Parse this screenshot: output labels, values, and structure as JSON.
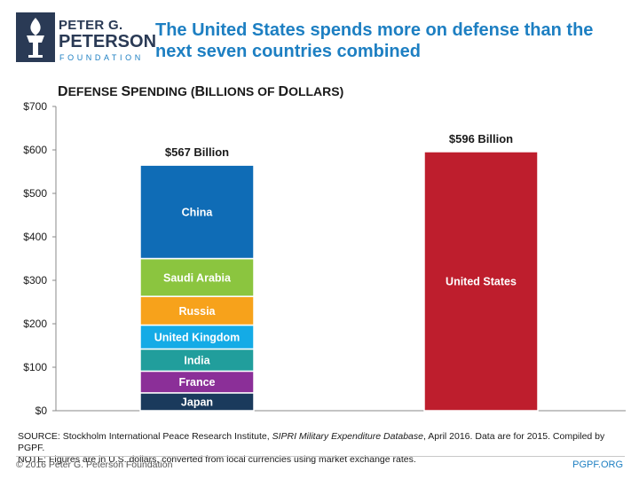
{
  "logo": {
    "line1": "PETER G.",
    "line2": "PETERSON",
    "line3": "FOUNDATION"
  },
  "headline": "The United States spends more on defense than the next seven countries combined",
  "chart_data": {
    "type": "bar",
    "stacked": true,
    "title_parts": [
      "D",
      "EFENSE ",
      "S",
      "PENDING (",
      "B",
      "ILLIONS OF ",
      "D",
      "OLLARS)"
    ],
    "title": "Defense Spending (Billions of Dollars)",
    "ylim": [
      0,
      700
    ],
    "yticks": [
      0,
      100,
      200,
      300,
      400,
      500,
      600,
      700
    ],
    "ytick_labels": [
      "$0",
      "$100",
      "$200",
      "$300",
      "$400",
      "$500",
      "$600",
      "$700"
    ],
    "bars": [
      {
        "name": "next-seven",
        "total_label": "$567 Billion",
        "segments": [
          {
            "label": "Japan",
            "value": 41,
            "color": "#1a3a5c"
          },
          {
            "label": "France",
            "value": 50,
            "color": "#8b2f98"
          },
          {
            "label": "India",
            "value": 51,
            "color": "#219e9c"
          },
          {
            "label": "United Kingdom",
            "value": 55,
            "color": "#14abe6"
          },
          {
            "label": "Russia",
            "value": 66,
            "color": "#f7a21b"
          },
          {
            "label": "Saudi Arabia",
            "value": 87,
            "color": "#8bc53f"
          },
          {
            "label": "China",
            "value": 215,
            "color": "#0f6cb6"
          }
        ]
      },
      {
        "name": "united-states",
        "total_label": "$596 Billion",
        "segments": [
          {
            "label": "United States",
            "value": 596,
            "color": "#be1e2d"
          }
        ]
      }
    ]
  },
  "source_lines": {
    "source_prefix": "SOURCE: Stockholm International Peace Research Institute, ",
    "source_italic": "SIPRI Military Expenditure Database",
    "source_suffix": ", April 2016. Data are for 2015. Compiled by PGPF.",
    "note": "NOTE: Figures are in U.S. dollars, converted from local currencies using market exchange rates."
  },
  "footer": {
    "copyright": "© 2016 Peter G. Peterson Foundation",
    "site": "PGPF.ORG"
  }
}
